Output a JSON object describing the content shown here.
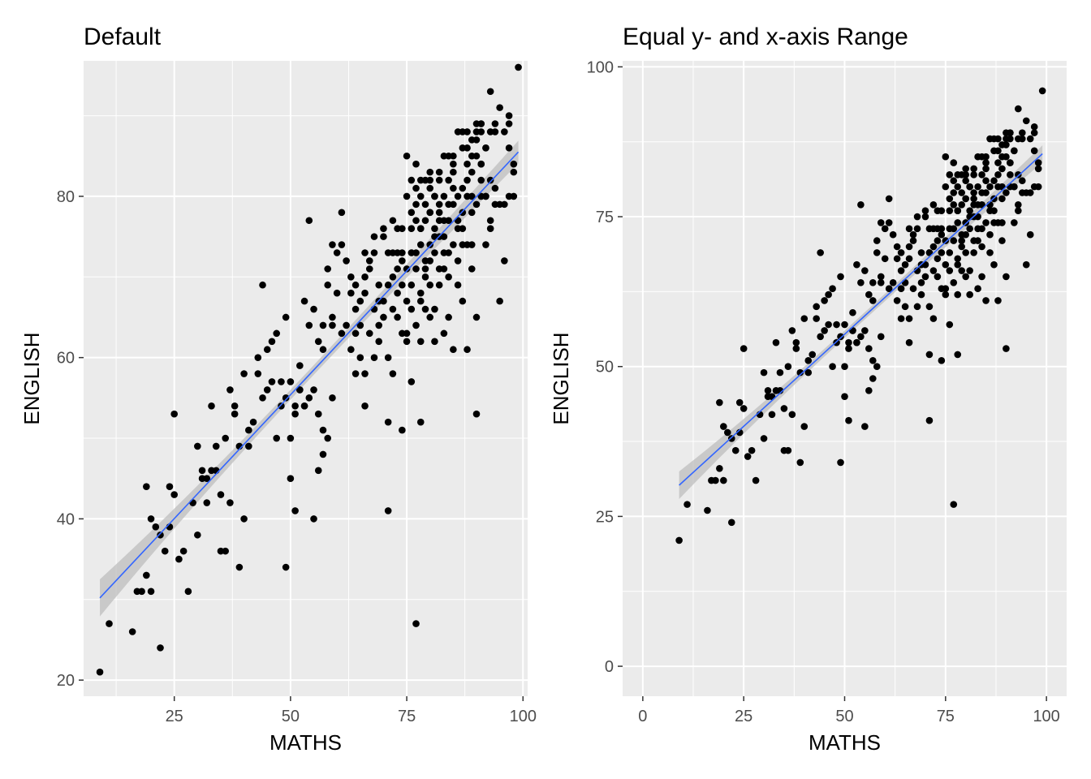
{
  "chart_data": [
    {
      "type": "scatter",
      "title": "Default",
      "xlabel": "MATHS",
      "ylabel": "ENGLISH",
      "xlim": [
        5.5,
        101
      ],
      "ylim": [
        18,
        96.8
      ],
      "xticks": [
        25,
        50,
        75,
        100
      ],
      "yticks": [
        20,
        40,
        60,
        80
      ],
      "grid": true,
      "smooth": {
        "method": "lm",
        "color": "#3366ff",
        "ribbon": "#bdbdbd",
        "x": [
          9,
          99
        ],
        "y": [
          30.2,
          85.5
        ],
        "se_ends": [
          2.3,
          1.4
        ],
        "se_mid": 0.6
      },
      "ref": "points"
    },
    {
      "type": "scatter",
      "title": "Equal y- and x-axis Range",
      "xlabel": "MATHS",
      "ylabel": "ENGLISH",
      "xlim": [
        -5,
        105
      ],
      "ylim": [
        -5,
        101
      ],
      "xticks": [
        0,
        25,
        50,
        75,
        100
      ],
      "yticks": [
        0,
        25,
        50,
        75,
        100
      ],
      "grid": true,
      "smooth": {
        "method": "lm",
        "color": "#3366ff",
        "ribbon": "#bdbdbd",
        "x": [
          9,
          99
        ],
        "y": [
          30.2,
          85.5
        ],
        "se_ends": [
          2.3,
          1.4
        ],
        "se_mid": 0.6
      },
      "ref": "points"
    }
  ],
  "points": [
    [
      9,
      21
    ],
    [
      11,
      27
    ],
    [
      16,
      26
    ],
    [
      17,
      31
    ],
    [
      19,
      33
    ],
    [
      19,
      44
    ],
    [
      20,
      40
    ],
    [
      21,
      39
    ],
    [
      22,
      24
    ],
    [
      23,
      36
    ],
    [
      24,
      39
    ],
    [
      24,
      44
    ],
    [
      25,
      43
    ],
    [
      25,
      53
    ],
    [
      28,
      31
    ],
    [
      30,
      38
    ],
    [
      30,
      49
    ],
    [
      31,
      46
    ],
    [
      32,
      42
    ],
    [
      32,
      45
    ],
    [
      33,
      54
    ],
    [
      34,
      49
    ],
    [
      35,
      36
    ],
    [
      35,
      43
    ],
    [
      36,
      36
    ],
    [
      36,
      50
    ],
    [
      37,
      42
    ],
    [
      38,
      54
    ],
    [
      39,
      34
    ],
    [
      40,
      40
    ],
    [
      40,
      58
    ],
    [
      41,
      49
    ],
    [
      42,
      52
    ],
    [
      43,
      60
    ],
    [
      44,
      55
    ],
    [
      44,
      69
    ],
    [
      45,
      61
    ],
    [
      46,
      62
    ],
    [
      47,
      63
    ],
    [
      48,
      54
    ],
    [
      49,
      65
    ],
    [
      49,
      34
    ],
    [
      50,
      45
    ],
    [
      50,
      57
    ],
    [
      51,
      41
    ],
    [
      51,
      53
    ],
    [
      52,
      56
    ],
    [
      53,
      54
    ],
    [
      53,
      67
    ],
    [
      54,
      77
    ],
    [
      55,
      40
    ],
    [
      56,
      46
    ],
    [
      56,
      53
    ],
    [
      57,
      51
    ],
    [
      57,
      48
    ],
    [
      58,
      50
    ],
    [
      58,
      71
    ],
    [
      59,
      65
    ],
    [
      59,
      74
    ],
    [
      60,
      68
    ],
    [
      61,
      78
    ],
    [
      62,
      72
    ],
    [
      63,
      61
    ],
    [
      64,
      58
    ],
    [
      64,
      69
    ],
    [
      65,
      64
    ],
    [
      66,
      54
    ],
    [
      66,
      73
    ],
    [
      67,
      63
    ],
    [
      68,
      66
    ],
    [
      69,
      69
    ],
    [
      70,
      65
    ],
    [
      70,
      76
    ],
    [
      71,
      52
    ],
    [
      71,
      41
    ],
    [
      72,
      58
    ],
    [
      72,
      66
    ],
    [
      73,
      73
    ],
    [
      74,
      51
    ],
    [
      74,
      63
    ],
    [
      75,
      71
    ],
    [
      75,
      85
    ],
    [
      76,
      69
    ],
    [
      76,
      78
    ],
    [
      77,
      27
    ],
    [
      77,
      73
    ],
    [
      77,
      84
    ],
    [
      78,
      52
    ],
    [
      78,
      67
    ],
    [
      78,
      76
    ],
    [
      78,
      80
    ],
    [
      79,
      71
    ],
    [
      79,
      82
    ],
    [
      80,
      65
    ],
    [
      80,
      78
    ],
    [
      80,
      81
    ],
    [
      81,
      73
    ],
    [
      81,
      66
    ],
    [
      81,
      80
    ],
    [
      82,
      75
    ],
    [
      82,
      69
    ],
    [
      82,
      79
    ],
    [
      82,
      77
    ],
    [
      83,
      75
    ],
    [
      83,
      80
    ],
    [
      83,
      63
    ],
    [
      84,
      73
    ],
    [
      84,
      70
    ],
    [
      84,
      77
    ],
    [
      85,
      61
    ],
    [
      85,
      79
    ],
    [
      85,
      85
    ],
    [
      86,
      76
    ],
    [
      86,
      72
    ],
    [
      87,
      74
    ],
    [
      87,
      86
    ],
    [
      87,
      81
    ],
    [
      88,
      84
    ],
    [
      88,
      88
    ],
    [
      88,
      61
    ],
    [
      89,
      78
    ],
    [
      89,
      83
    ],
    [
      89,
      80
    ],
    [
      90,
      53
    ],
    [
      90,
      87
    ],
    [
      90,
      85
    ],
    [
      90,
      65
    ],
    [
      91,
      84
    ],
    [
      91,
      88
    ],
    [
      91,
      89
    ],
    [
      92,
      86
    ],
    [
      92,
      80
    ],
    [
      93,
      76
    ],
    [
      93,
      82
    ],
    [
      93,
      93
    ],
    [
      94,
      81
    ],
    [
      94,
      79
    ],
    [
      95,
      67
    ],
    [
      95,
      91
    ],
    [
      96,
      72
    ],
    [
      96,
      88
    ],
    [
      97,
      89
    ],
    [
      97,
      90
    ],
    [
      97,
      80
    ],
    [
      98,
      84
    ],
    [
      99,
      96
    ],
    [
      20,
      31
    ],
    [
      18,
      31
    ],
    [
      27,
      36
    ],
    [
      33,
      46
    ],
    [
      37,
      56
    ],
    [
      39,
      49
    ],
    [
      43,
      58
    ],
    [
      46,
      57
    ],
    [
      48,
      57
    ],
    [
      50,
      50
    ],
    [
      52,
      59
    ],
    [
      54,
      55
    ],
    [
      55,
      66
    ],
    [
      57,
      64
    ],
    [
      59,
      55
    ],
    [
      61,
      63
    ],
    [
      63,
      68
    ],
    [
      64,
      63
    ],
    [
      66,
      70
    ],
    [
      68,
      73
    ],
    [
      69,
      62
    ],
    [
      71,
      60
    ],
    [
      72,
      77
    ],
    [
      73,
      71
    ],
    [
      74,
      76
    ],
    [
      75,
      62
    ],
    [
      76,
      57
    ],
    [
      77,
      81
    ],
    [
      78,
      62
    ],
    [
      79,
      72
    ],
    [
      80,
      69
    ],
    [
      80,
      83
    ],
    [
      81,
      75
    ],
    [
      82,
      71
    ],
    [
      83,
      77
    ],
    [
      84,
      85
    ],
    [
      85,
      81
    ],
    [
      86,
      77
    ],
    [
      87,
      78
    ],
    [
      87,
      67
    ],
    [
      88,
      74
    ],
    [
      88,
      80
    ],
    [
      89,
      74
    ],
    [
      90,
      79
    ],
    [
      91,
      80
    ],
    [
      91,
      82
    ],
    [
      92,
      86
    ],
    [
      93,
      77
    ],
    [
      94,
      88
    ],
    [
      95,
      79
    ],
    [
      96,
      79
    ],
    [
      98,
      80
    ],
    [
      98,
      83
    ],
    [
      97,
      86
    ],
    [
      92,
      74
    ],
    [
      89,
      71
    ],
    [
      86,
      69
    ],
    [
      85,
      74
    ],
    [
      84,
      65
    ],
    [
      83,
      71
    ],
    [
      82,
      83
    ],
    [
      81,
      62
    ],
    [
      80,
      74
    ],
    [
      79,
      70
    ],
    [
      78,
      82
    ],
    [
      77,
      71
    ],
    [
      76,
      76
    ],
    [
      75,
      63
    ],
    [
      74,
      72
    ],
    [
      73,
      68
    ],
    [
      72,
      70
    ],
    [
      71,
      69
    ],
    [
      70,
      75
    ],
    [
      69,
      67
    ],
    [
      68,
      75
    ],
    [
      67,
      71
    ],
    [
      66,
      58
    ],
    [
      65,
      60
    ],
    [
      64,
      66
    ],
    [
      63,
      70
    ],
    [
      62,
      64
    ],
    [
      61,
      74
    ],
    [
      60,
      73
    ],
    [
      59,
      64
    ],
    [
      58,
      69
    ],
    [
      57,
      61
    ],
    [
      56,
      62
    ],
    [
      55,
      56
    ],
    [
      54,
      64
    ],
    [
      53,
      54
    ],
    [
      52,
      56
    ],
    [
      51,
      54
    ],
    [
      49,
      55
    ],
    [
      47,
      50
    ],
    [
      45,
      56
    ],
    [
      41,
      51
    ],
    [
      38,
      53
    ],
    [
      34,
      46
    ],
    [
      31,
      45
    ],
    [
      29,
      42
    ],
    [
      26,
      35
    ],
    [
      22,
      38
    ],
    [
      76,
      66
    ],
    [
      77,
      64
    ],
    [
      78,
      68
    ],
    [
      79,
      66
    ],
    [
      80,
      78
    ],
    [
      81,
      80
    ],
    [
      82,
      78
    ],
    [
      83,
      73
    ],
    [
      84,
      79
    ],
    [
      85,
      83
    ],
    [
      86,
      80
    ],
    [
      87,
      76
    ],
    [
      88,
      82
    ],
    [
      89,
      85
    ],
    [
      90,
      88
    ],
    [
      91,
      84
    ],
    [
      92,
      80
    ],
    [
      93,
      88
    ],
    [
      94,
      89
    ],
    [
      73,
      76
    ],
    [
      74,
      73
    ],
    [
      75,
      80
    ],
    [
      76,
      82
    ],
    [
      77,
      79
    ],
    [
      78,
      74
    ],
    [
      79,
      77
    ],
    [
      80,
      82
    ],
    [
      65,
      67
    ],
    [
      66,
      68
    ],
    [
      67,
      72
    ],
    [
      68,
      60
    ],
    [
      69,
      64
    ],
    [
      70,
      67
    ],
    [
      71,
      73
    ],
    [
      72,
      73
    ],
    [
      73,
      65
    ],
    [
      74,
      69
    ],
    [
      75,
      67
    ],
    [
      76,
      73
    ],
    [
      77,
      77
    ],
    [
      78,
      76
    ],
    [
      79,
      79
    ],
    [
      80,
      72
    ],
    [
      81,
      76
    ],
    [
      82,
      82
    ],
    [
      83,
      85
    ],
    [
      84,
      82
    ],
    [
      85,
      84
    ],
    [
      86,
      88
    ],
    [
      87,
      88
    ],
    [
      88,
      86
    ],
    [
      89,
      87
    ],
    [
      90,
      89
    ],
    [
      91,
      89
    ]
  ]
}
